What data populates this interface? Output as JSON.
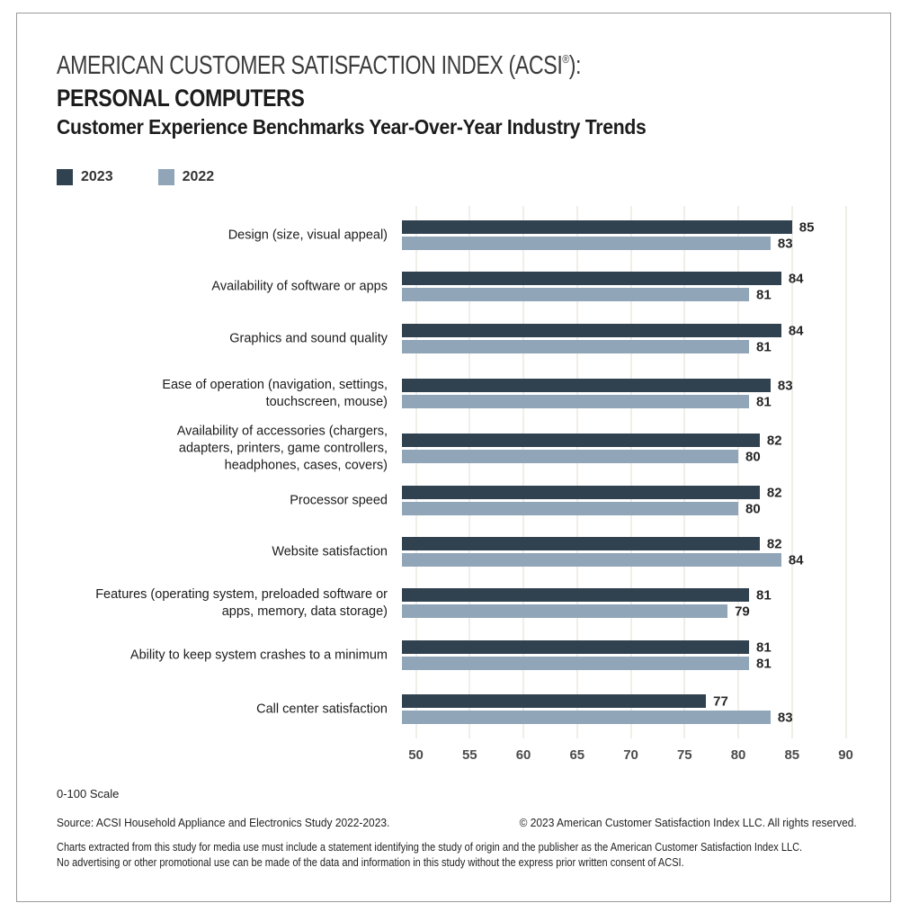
{
  "header": {
    "title_prefix": "AMERICAN CUSTOMER SATISFACTION INDEX (ACSI",
    "title_reg": "®",
    "title_suffix": "):",
    "subtitle": "PERSONAL COMPUTERS",
    "tagline": "Customer Experience Benchmarks Year-Over-Year Industry Trends"
  },
  "legend": {
    "items": [
      {
        "label": "2023",
        "color": "#304150"
      },
      {
        "label": "2022",
        "color": "#90a5b8"
      }
    ]
  },
  "chart_data": {
    "type": "bar",
    "orientation": "horizontal",
    "title": "AMERICAN CUSTOMER SATISFACTION INDEX (ACSI®): PERSONAL COMPUTERS",
    "subtitle": "Customer Experience Benchmarks Year-Over-Year Industry Trends",
    "xlim": [
      48.7,
      92
    ],
    "x_ticks": [
      50,
      55,
      60,
      65,
      70,
      75,
      80,
      85,
      90
    ],
    "grid": "vertical",
    "legend_position": "top-left",
    "scale_note": "0-100 Scale",
    "categories": [
      "Design (size, visual appeal)",
      "Availability of software or apps",
      "Graphics and sound quality",
      "Ease of operation (navigation, settings, touchscreen, mouse)",
      "Availability of accessories (chargers, adapters, printers, game controllers, headphones, cases, covers)",
      "Processor speed",
      "Website satisfaction",
      "Features (operating system, preloaded software or apps, memory, data storage)",
      "Ability to keep system crashes to a minimum",
      "Call center satisfaction"
    ],
    "category_lines": [
      [
        "Design (size, visual appeal)"
      ],
      [
        "Availability of software or apps"
      ],
      [
        "Graphics and sound quality"
      ],
      [
        "Ease of operation (navigation, settings,",
        "touchscreen, mouse)"
      ],
      [
        "Availability of accessories (chargers,",
        "adapters, printers, game controllers,",
        "headphones, cases, covers)"
      ],
      [
        "Processor speed"
      ],
      [
        "Website satisfaction"
      ],
      [
        "Features (operating system, preloaded software or",
        "apps, memory, data storage)"
      ],
      [
        "Ability to keep system crashes to a minimum"
      ],
      [
        "Call center satisfaction"
      ]
    ],
    "series": [
      {
        "name": "2023",
        "color": "#304150",
        "values": [
          85,
          84,
          84,
          83,
          82,
          82,
          82,
          81,
          81,
          77
        ]
      },
      {
        "name": "2022",
        "color": "#90a5b8",
        "values": [
          83,
          81,
          81,
          81,
          80,
          80,
          84,
          79,
          81,
          83
        ]
      }
    ]
  },
  "footer": {
    "scale_note": "0-100 Scale",
    "source": "Source: ACSI Household Appliance and Electronics Study 2022-2023.",
    "copyright": "© 2023 American Customer Satisfaction Index LLC. All rights reserved.",
    "legal_lines": [
      "Charts extracted from this study for media use must include a statement identifying the study of origin and the publisher as the American Customer Satisfaction Index LLC.",
      "No advertising or other promotional use can be made of the data and information in this study without the express prior written consent of ACSI."
    ]
  },
  "colors": {
    "bar_2023": "#304150",
    "bar_2022": "#90a5b8",
    "gridline": "#f0eee9",
    "frame_border": "#9a9a9a"
  }
}
